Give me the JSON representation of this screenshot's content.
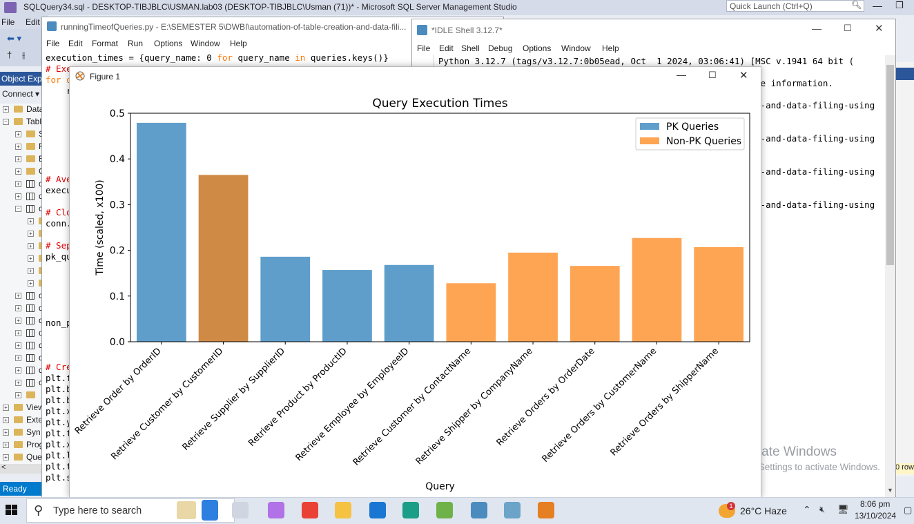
{
  "ssms": {
    "title": "SQLQuery34.sql - DESKTOP-TIBJBLC\\USMAN.lab03 (DESKTOP-TIBJBLC\\Usman (71))* - Microsoft SQL Server Management Studio",
    "quick_launch_placeholder": "Quick Launch (Ctrl+Q)",
    "menu": {
      "file": "File",
      "edit": "Edit"
    },
    "object_explorer": "Object Expl",
    "connect": "Connect ▾",
    "tree": [
      {
        "label": "Data",
        "icon": "folder",
        "exp": "+",
        "indent": 0
      },
      {
        "label": "Tabl",
        "icon": "folder",
        "exp": "−",
        "indent": 0
      },
      {
        "label": "S",
        "icon": "folder",
        "exp": "+",
        "indent": 1
      },
      {
        "label": "F",
        "icon": "folder",
        "exp": "+",
        "indent": 1
      },
      {
        "label": "E",
        "icon": "folder",
        "exp": "+",
        "indent": 1
      },
      {
        "label": "C",
        "icon": "folder",
        "exp": "+",
        "indent": 1
      },
      {
        "label": "d",
        "icon": "table",
        "exp": "+",
        "indent": 1
      },
      {
        "label": "d",
        "icon": "table",
        "exp": "+",
        "indent": 1
      },
      {
        "label": "d",
        "icon": "table",
        "exp": "−",
        "indent": 1
      },
      {
        "label": "",
        "icon": "folder",
        "exp": "+",
        "indent": 2
      },
      {
        "label": "",
        "icon": "folder",
        "exp": "+",
        "indent": 2
      },
      {
        "label": "",
        "icon": "folder",
        "exp": "+",
        "indent": 2
      },
      {
        "label": "",
        "icon": "folder",
        "exp": "+",
        "indent": 2
      },
      {
        "label": "",
        "icon": "folder",
        "exp": "+",
        "indent": 2
      },
      {
        "label": "",
        "icon": "folder",
        "exp": "+",
        "indent": 2
      },
      {
        "label": "d",
        "icon": "table",
        "exp": "+",
        "indent": 1
      },
      {
        "label": "d",
        "icon": "table",
        "exp": "+",
        "indent": 1
      },
      {
        "label": "d",
        "icon": "table",
        "exp": "+",
        "indent": 1
      },
      {
        "label": "d",
        "icon": "table",
        "exp": "+",
        "indent": 1
      },
      {
        "label": "d",
        "icon": "table",
        "exp": "+",
        "indent": 1
      },
      {
        "label": "d",
        "icon": "table",
        "exp": "+",
        "indent": 1
      },
      {
        "label": "d",
        "icon": "table",
        "exp": "+",
        "indent": 1
      },
      {
        "label": "d",
        "icon": "table",
        "exp": "+",
        "indent": 1
      },
      {
        "label": "",
        "icon": "folder",
        "exp": "+",
        "indent": 1
      },
      {
        "label": "View",
        "icon": "folder",
        "exp": "+",
        "indent": 0
      },
      {
        "label": "Exte",
        "icon": "folder",
        "exp": "+",
        "indent": 0
      },
      {
        "label": "Syn",
        "icon": "folder",
        "exp": "+",
        "indent": 0
      },
      {
        "label": "Prog",
        "icon": "folder",
        "exp": "+",
        "indent": 0
      },
      {
        "label": "Que",
        "icon": "folder",
        "exp": "+",
        "indent": 0
      }
    ],
    "status": "Ready",
    "rows_label": "0 row"
  },
  "editor": {
    "title": "runningTimeofQueries.py - E:\\SEMESTER 5\\DWBI\\automation-of-table-creation-and-data-fili...",
    "menu": [
      "File",
      "Edit",
      "Format",
      "Run",
      "Options",
      "Window",
      "Help"
    ],
    "lines": [
      {
        "text": "execution_times = {query_name: 0 for query_name in queries.keys()}",
        "style": "normal"
      },
      {
        "text": "# Exe",
        "style": "comment"
      },
      {
        "text": "for q",
        "style": "keyword"
      },
      {
        "text": "    r",
        "style": "normal"
      },
      {
        "text": "",
        "style": "normal"
      },
      {
        "text": "",
        "style": "normal"
      },
      {
        "text": "",
        "style": "normal"
      },
      {
        "text": "",
        "style": "normal"
      },
      {
        "text": "",
        "style": "normal"
      },
      {
        "text": "",
        "style": "normal"
      },
      {
        "text": "",
        "style": "normal"
      },
      {
        "text": "# Ave",
        "style": "comment"
      },
      {
        "text": "execu",
        "style": "normal"
      },
      {
        "text": "",
        "style": "normal"
      },
      {
        "text": "# Clo",
        "style": "comment"
      },
      {
        "text": "conn.",
        "style": "normal"
      },
      {
        "text": "",
        "style": "normal"
      },
      {
        "text": "# Sep",
        "style": "comment"
      },
      {
        "text": "pk_qu",
        "style": "normal"
      },
      {
        "text": "",
        "style": "normal"
      },
      {
        "text": "",
        "style": "normal"
      },
      {
        "text": "",
        "style": "normal"
      },
      {
        "text": "",
        "style": "normal"
      },
      {
        "text": "",
        "style": "normal"
      },
      {
        "text": "non_p",
        "style": "normal"
      },
      {
        "text": "",
        "style": "normal"
      },
      {
        "text": "",
        "style": "normal"
      },
      {
        "text": "",
        "style": "normal"
      },
      {
        "text": "# Cre",
        "style": "comment"
      },
      {
        "text": "plt.f",
        "style": "normal"
      },
      {
        "text": "plt.b",
        "style": "normal"
      },
      {
        "text": "plt.b",
        "style": "normal"
      },
      {
        "text": "plt.x",
        "style": "normal"
      },
      {
        "text": "plt.y",
        "style": "normal"
      },
      {
        "text": "plt.t",
        "style": "normal"
      },
      {
        "text": "plt.x",
        "style": "normal"
      },
      {
        "text": "plt.l",
        "style": "normal"
      },
      {
        "text": "plt.t",
        "style": "normal"
      },
      {
        "text": "plt.s",
        "style": "normal"
      }
    ]
  },
  "idle": {
    "title": "*IDLE Shell 3.12.7*",
    "menu": [
      "File",
      "Edit",
      "Shell",
      "Debug",
      "Options",
      "Window",
      "Help"
    ],
    "lines": [
      "Python 3.12.7 (tags/v3.12.7:0b05ead, Oct  1 2024, 03:06:41) [MSC v.1941 64 bit (",
      "",
      "                                                              e information.",
      "",
      "                                                              -and-data-filing-using",
      "",
      "",
      "                                                              -and-data-filing-using",
      "",
      "",
      "                                                              -and-data-filing-using",
      "",
      "",
      "                                                              -and-data-filing-using"
    ],
    "activate_title": "Activate Windows",
    "activate_sub": "Go to Settings to activate Windows."
  },
  "figure": {
    "title": "Figure 1"
  },
  "chart_data": {
    "type": "bar",
    "title": "Query Execution Times",
    "xlabel": "Query",
    "ylabel": "Time (scaled, x100)",
    "ylim": [
      0,
      0.5
    ],
    "yticks": [
      "0.0",
      "0.1",
      "0.2",
      "0.3",
      "0.4",
      "0.5"
    ],
    "categories": [
      "Retrieve Order by OrderID",
      "Retrieve Customer by CustomerID",
      "Retrieve Supplier by SupplierID",
      "Retrieve Product by ProductID",
      "Retrieve Employee by EmployeeID",
      "Retrieve Customer by ContactName",
      "Retrieve Shipper by CompanyName",
      "Retrieve Orders by OrderDate",
      "Retrieve Orders by CustomerName",
      "Retrieve Orders by ShipperName"
    ],
    "values": [
      0.479,
      0.365,
      0.186,
      0.157,
      0.168,
      0.128,
      0.195,
      0.166,
      0.227,
      0.207
    ],
    "bar_colors": [
      "#5f9ecb",
      "#cf8a45",
      "#5f9ecb",
      "#5f9ecb",
      "#5f9ecb",
      "#fea554",
      "#fea554",
      "#fea554",
      "#fea554",
      "#fea554"
    ],
    "legend": [
      {
        "name": "PK Queries",
        "color": "#5f9ecb"
      },
      {
        "name": "Non-PK Queries",
        "color": "#fea554"
      }
    ],
    "legend_position": "top-right",
    "grid": false
  },
  "taskbar": {
    "search_placeholder": "Type here to search",
    "weather": "26°C  Haze",
    "weather_badge": "1",
    "time": "8:06 pm",
    "date": "13/10/2024",
    "apps": [
      "task-view-icon",
      "copilot-icon",
      "chrome-icon",
      "file-explorer-icon",
      "mail-icon",
      "edge-icon",
      "photos-icon",
      "python-icon",
      "files-icon",
      "matplotlib-icon"
    ]
  }
}
